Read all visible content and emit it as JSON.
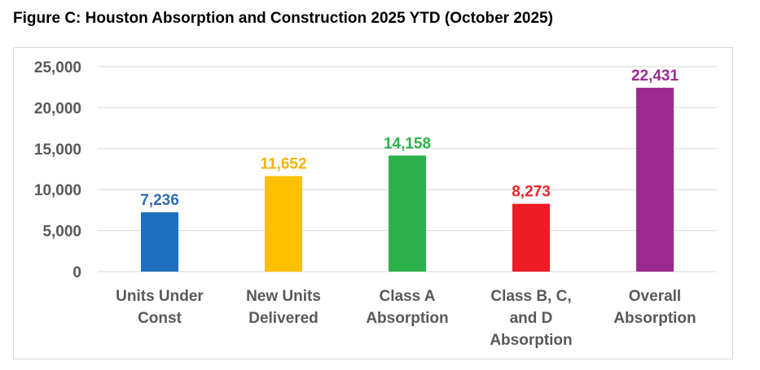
{
  "figure_title": "Figure C:  Houston Absorption and Construction 2025 YTD (October 2025)",
  "chart_data": {
    "type": "bar",
    "title": "",
    "xlabel": "",
    "ylabel": "",
    "ylim": [
      0,
      25000
    ],
    "yticks": [
      0,
      5000,
      10000,
      15000,
      20000,
      25000
    ],
    "ytick_labels": [
      "0",
      "5,000",
      "10,000",
      "15,000",
      "20,000",
      "25,000"
    ],
    "grid": true,
    "legend": "none",
    "categories": [
      [
        "Units Under",
        "Const"
      ],
      [
        "New Units",
        "Delivered"
      ],
      [
        "Class A",
        "Absorption"
      ],
      [
        "Class B, C,",
        "and D",
        "Absorption"
      ],
      [
        "Overall",
        "Absorption"
      ]
    ],
    "values": [
      7236,
      11652,
      14158,
      8273,
      22431
    ],
    "data_labels": [
      "7,236",
      "11,652",
      "14,158",
      "8,273",
      "22,431"
    ],
    "colors": [
      "#1f6fbf",
      "#ffc000",
      "#2db24b",
      "#ee1c24",
      "#9b2a90"
    ],
    "label_colors": [
      "#2e6db4",
      "#f5b400",
      "#2db24b",
      "#e8262b",
      "#9b2a90"
    ],
    "gridline_color": "#d9d9d9",
    "axis_text_color": "#595959"
  }
}
